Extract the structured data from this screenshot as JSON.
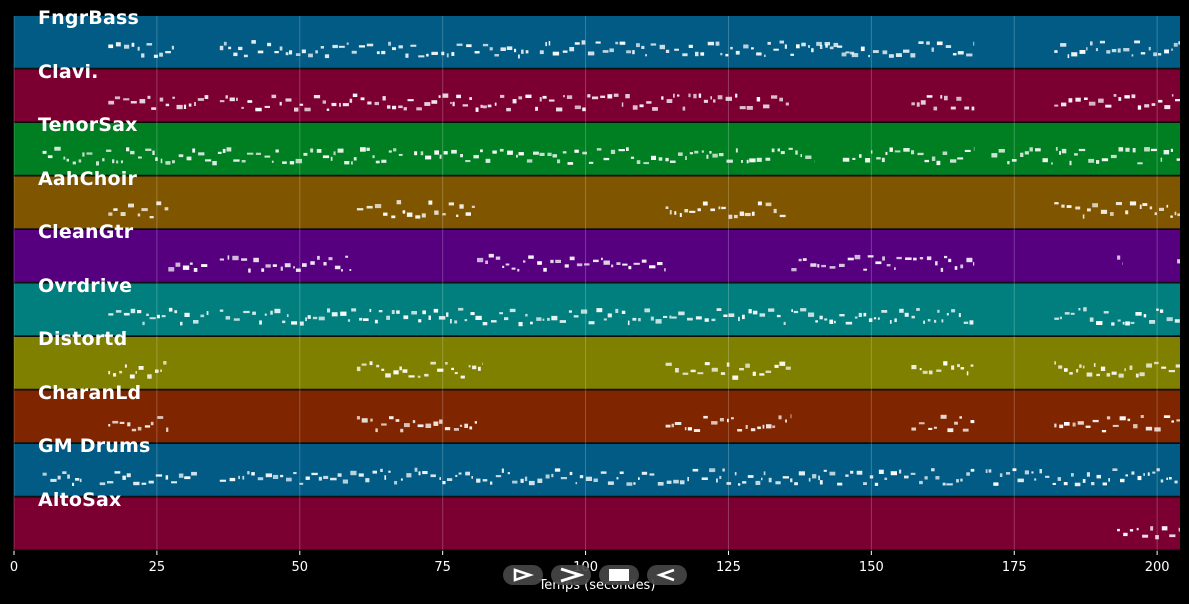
{
  "chart_data": {
    "type": "piano-roll",
    "xlabel": "Temps (secondes)",
    "xlim": [
      0,
      204
    ],
    "xticks": [
      0,
      25,
      50,
      75,
      100,
      125,
      150,
      175,
      200
    ],
    "xtick_labels": [
      "0",
      "25",
      "50",
      "75",
      "100",
      "125",
      "150",
      "175",
      "200"
    ],
    "grid": true,
    "tracks": [
      {
        "name": "FngrBass",
        "color": "#015b84",
        "activity": [
          [
            16.5,
            28
          ],
          [
            36,
            90
          ],
          [
            92,
            115
          ],
          [
            115.5,
            147
          ],
          [
            141,
            168
          ],
          [
            182,
            204
          ]
        ]
      },
      {
        "name": "Clavi.",
        "color": "#7b0031",
        "activity": [
          [
            16.5,
            34
          ],
          [
            36,
            82
          ],
          [
            82,
            116
          ],
          [
            116,
            136
          ],
          [
            157,
            168
          ],
          [
            182,
            204
          ]
        ]
      },
      {
        "name": "TenorSax",
        "color": "#007f22",
        "activity": [
          [
            5,
            68
          ],
          [
            70,
            95
          ],
          [
            95,
            140
          ],
          [
            145,
            168
          ],
          [
            171,
            204
          ]
        ]
      },
      {
        "name": "AahChoir",
        "color": "#7f5500",
        "activity": [
          [
            16.5,
            27
          ],
          [
            60,
            81
          ],
          [
            114,
            135
          ],
          [
            182,
            204
          ]
        ]
      },
      {
        "name": "CleanGtr",
        "color": "#56007f",
        "activity": [
          [
            27,
            34
          ],
          [
            36,
            59
          ],
          [
            81,
            114
          ],
          [
            136,
            168
          ],
          [
            193,
            194
          ],
          [
            203.5,
            204
          ]
        ]
      },
      {
        "name": "Ovrdrive",
        "color": "#007f7e",
        "activity": [
          [
            16.5,
            34
          ],
          [
            36,
            59
          ],
          [
            59,
            82
          ],
          [
            82,
            115
          ],
          [
            115,
            135
          ],
          [
            136,
            168
          ],
          [
            182,
            204
          ]
        ]
      },
      {
        "name": "Distortd",
        "color": "#7f7f00",
        "activity": [
          [
            16.5,
            27
          ],
          [
            60,
            82
          ],
          [
            114,
            136
          ],
          [
            157,
            168
          ],
          [
            182,
            204
          ]
        ]
      },
      {
        "name": "CharanLd",
        "color": "#7f2500",
        "activity": [
          [
            16.5,
            27
          ],
          [
            60,
            81
          ],
          [
            114,
            136
          ],
          [
            157,
            168
          ],
          [
            182,
            204
          ]
        ]
      },
      {
        "name": "GM Drums",
        "color": "#015b84",
        "activity": [
          [
            5,
            12
          ],
          [
            15,
            32
          ],
          [
            36,
            82
          ],
          [
            82,
            141
          ],
          [
            141,
            168
          ],
          [
            170,
            204
          ]
        ]
      },
      {
        "name": "AltoSax",
        "color": "#7b0031",
        "activity": [
          [
            193,
            204
          ]
        ]
      }
    ]
  },
  "controls": [
    {
      "name": "play-icon",
      "label": "play"
    },
    {
      "name": "fast-forward-icon",
      "label": "fast-forward"
    },
    {
      "name": "stop-icon",
      "label": "stop"
    },
    {
      "name": "rewind-icon",
      "label": "rewind"
    }
  ]
}
